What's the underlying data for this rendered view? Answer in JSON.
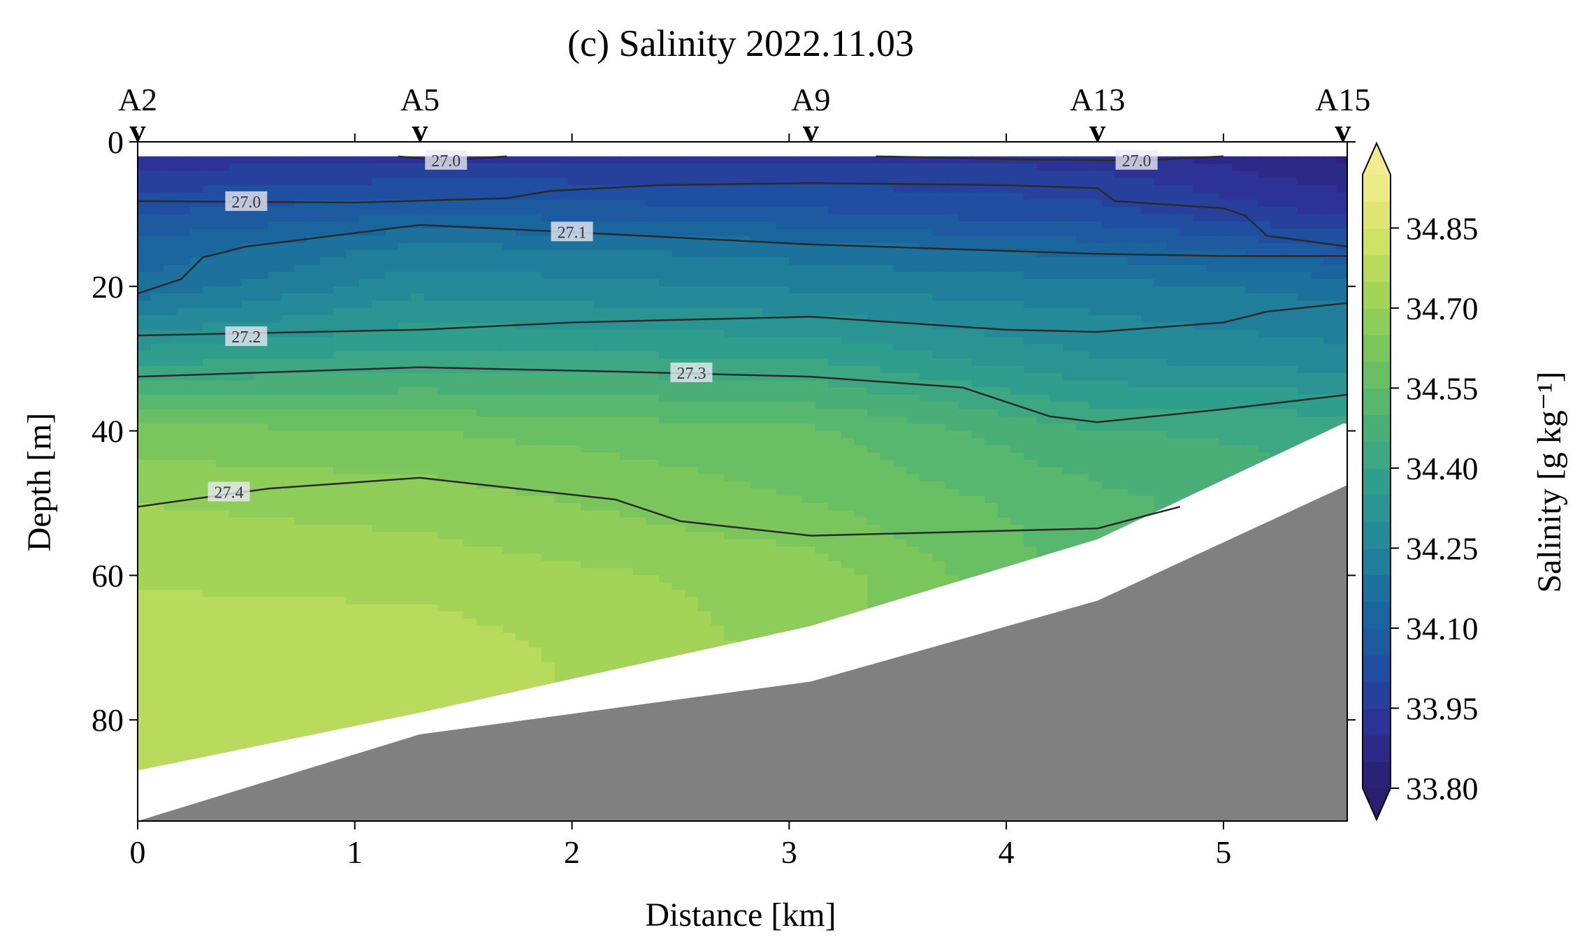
{
  "chart_data": {
    "type": "heatmap",
    "title": "(c) Salinity 2022.11.03",
    "xlabel": "Distance [km]",
    "ylabel": "Depth [m]",
    "xlim": [
      0,
      5.57
    ],
    "ylim": [
      0,
      94
    ],
    "x_ticks": [
      "0",
      "1",
      "2",
      "3",
      "4",
      "5"
    ],
    "y_ticks": [
      "0",
      "20",
      "40",
      "60",
      "80"
    ],
    "colorbar": {
      "label": "Salinity [g kg⁻¹]",
      "range": [
        33.8,
        34.95
      ],
      "ticks": [
        "33.80",
        "33.95",
        "34.10",
        "34.25",
        "34.40",
        "34.55",
        "34.70",
        "34.85"
      ],
      "colormap": [
        "#2a1e6e",
        "#2e3095",
        "#1f4fa2",
        "#1a6a9e",
        "#23879a",
        "#2f9e8c",
        "#4db274",
        "#72c35f",
        "#a2d356",
        "#d2e365",
        "#f3ec8e"
      ]
    },
    "stations": [
      {
        "name": "A2",
        "x": 0.0
      },
      {
        "name": "A5",
        "x": 1.3
      },
      {
        "name": "A9",
        "x": 3.1
      },
      {
        "name": "A13",
        "x": 4.42
      },
      {
        "name": "A15",
        "x": 5.55
      }
    ],
    "sampled_range": {
      "x": [
        0.0,
        1.3,
        3.1,
        4.42,
        5.55
      ],
      "bottom_depth": [
        87,
        79,
        67,
        55,
        39
      ]
    },
    "seafloor": {
      "x": [
        0.0,
        1.3,
        3.1,
        4.42,
        5.57
      ],
      "depth": [
        94,
        82,
        74.7,
        63.5,
        47.5
      ]
    },
    "salinity_field": {
      "x": [
        0.0,
        1.3,
        3.1,
        4.42,
        5.55
      ],
      "depth": [
        2,
        10,
        15,
        20,
        30,
        40,
        50,
        60,
        70,
        80,
        87
      ],
      "values": [
        [
          33.92,
          33.93,
          33.94,
          33.93,
          33.84
        ],
        [
          34.05,
          34.1,
          34.06,
          34.02,
          33.94
        ],
        [
          34.12,
          34.22,
          34.18,
          34.13,
          34.06
        ],
        [
          34.16,
          34.28,
          34.24,
          34.22,
          34.18
        ],
        [
          34.38,
          34.42,
          34.4,
          34.3,
          34.27
        ],
        [
          34.62,
          34.6,
          34.56,
          34.45,
          34.44
        ],
        [
          34.7,
          34.68,
          34.6,
          34.52,
          null
        ],
        [
          34.74,
          34.73,
          34.68,
          null,
          null
        ],
        [
          34.79,
          34.78,
          null,
          null,
          null
        ],
        [
          34.8,
          34.8,
          null,
          null,
          null
        ],
        [
          34.8,
          null,
          null,
          null,
          null
        ]
      ]
    },
    "density_contours": [
      {
        "level": "27.0",
        "label_x": 1.42,
        "label_depth": 2.6,
        "points": [
          [
            1.2,
            2.0
          ],
          [
            1.4,
            2.6
          ],
          [
            1.7,
            2.0
          ]
        ]
      },
      {
        "level": "27.0",
        "label_x": 4.6,
        "label_depth": 2.6,
        "points": [
          [
            3.4,
            2.0
          ],
          [
            4.0,
            2.4
          ],
          [
            4.6,
            2.6
          ],
          [
            5.0,
            2.0
          ]
        ]
      },
      {
        "level": "27.0",
        "label_x": 0.5,
        "label_depth": 8.3,
        "points": [
          [
            0.0,
            8.2
          ],
          [
            1.0,
            8.4
          ],
          [
            1.7,
            7.8
          ],
          [
            1.9,
            6.8
          ],
          [
            2.4,
            6.0
          ],
          [
            3.1,
            5.7
          ],
          [
            4.0,
            6.0
          ],
          [
            4.42,
            6.4
          ],
          [
            4.5,
            8.2
          ],
          [
            5.0,
            9.2
          ],
          [
            5.1,
            10.2
          ],
          [
            5.2,
            13.0
          ],
          [
            5.57,
            14.5
          ]
        ]
      },
      {
        "level": "27.1",
        "label_x": 2.0,
        "label_depth": 12.5,
        "points": [
          [
            0.0,
            21.0
          ],
          [
            0.2,
            19.0
          ],
          [
            0.3,
            16.0
          ],
          [
            0.5,
            14.5
          ],
          [
            1.3,
            11.5
          ],
          [
            2.0,
            12.5
          ],
          [
            3.1,
            14.2
          ],
          [
            4.42,
            15.5
          ],
          [
            5.0,
            15.8
          ],
          [
            5.57,
            15.8
          ]
        ]
      },
      {
        "level": "27.2",
        "label_x": 0.5,
        "label_depth": 27.0,
        "points": [
          [
            0.0,
            26.8
          ],
          [
            1.3,
            26.0
          ],
          [
            2.0,
            25.0
          ],
          [
            3.1,
            24.2
          ],
          [
            4.0,
            26.0
          ],
          [
            4.42,
            26.3
          ],
          [
            5.0,
            25.0
          ],
          [
            5.2,
            23.5
          ],
          [
            5.57,
            22.3
          ]
        ]
      },
      {
        "level": "27.3",
        "label_x": 2.55,
        "label_depth": 32.0,
        "points": [
          [
            0.0,
            32.5
          ],
          [
            1.3,
            31.2
          ],
          [
            2.2,
            31.8
          ],
          [
            3.1,
            32.5
          ],
          [
            3.8,
            34.0
          ],
          [
            4.2,
            38.0
          ],
          [
            4.42,
            38.8
          ],
          [
            5.0,
            37.0
          ],
          [
            5.57,
            35.0
          ]
        ]
      },
      {
        "level": "27.4",
        "label_x": 0.42,
        "label_depth": 48.5,
        "points": [
          [
            0.0,
            50.5
          ],
          [
            0.6,
            48.0
          ],
          [
            1.3,
            46.5
          ],
          [
            2.2,
            49.5
          ],
          [
            2.5,
            52.5
          ],
          [
            3.1,
            54.5
          ],
          [
            4.42,
            53.5
          ],
          [
            4.8,
            50.5
          ]
        ]
      }
    ]
  }
}
